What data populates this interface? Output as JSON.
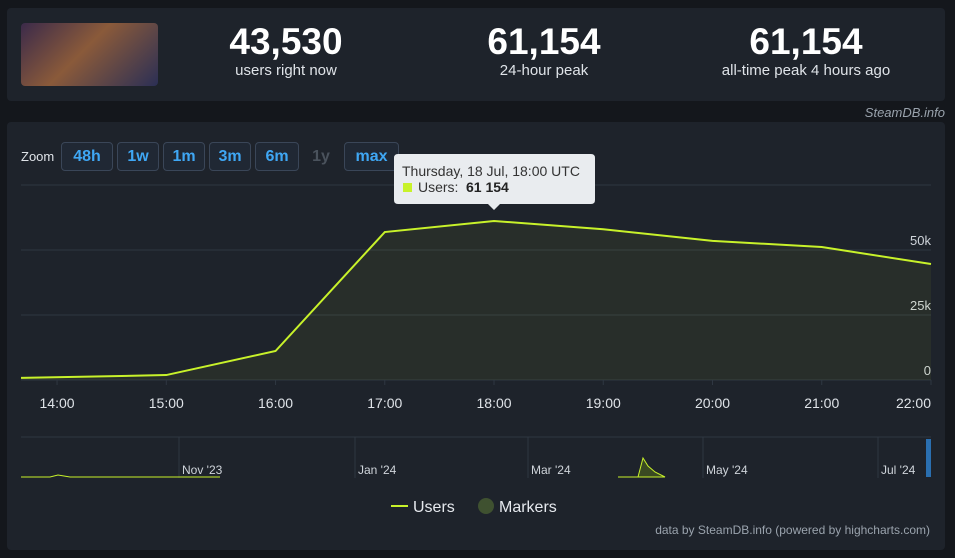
{
  "stats": [
    {
      "value": "43,530",
      "label": "users right now"
    },
    {
      "value": "61,154",
      "label": "24-hour peak"
    },
    {
      "value": "61,154",
      "label": "all-time peak 4 hours ago"
    }
  ],
  "brand": "SteamDB.info",
  "zoom": {
    "label": "Zoom",
    "buttons": [
      "48h",
      "1w",
      "1m",
      "3m",
      "6m",
      "1y",
      "max"
    ]
  },
  "tooltip": {
    "title": "Thursday, 18 Jul, 18:00 UTC",
    "series": "Users:",
    "value": "61 154"
  },
  "navigator": {
    "labels": [
      "Nov '23",
      "Jan '24",
      "Mar '24",
      "May '24",
      "Jul '24"
    ]
  },
  "legend": [
    "Users",
    "Markers"
  ],
  "credits": "data by SteamDB.info (powered by highcharts.com)",
  "chart_data": {
    "type": "line",
    "x": [
      13.67,
      15,
      16,
      17,
      18,
      19,
      20,
      21,
      22
    ],
    "series": [
      {
        "name": "Users",
        "color": "#c8f22a",
        "values": [
          800,
          1900,
          11150,
          56900,
          61154,
          58000,
          53500,
          51150,
          44600
        ]
      }
    ],
    "xlim": [
      13.67,
      22
    ],
    "xticks": [
      {
        "value": 14,
        "label": "14:00"
      },
      {
        "value": 15,
        "label": "15:00"
      },
      {
        "value": 16,
        "label": "16:00"
      },
      {
        "value": 17,
        "label": "17:00"
      },
      {
        "value": 18,
        "label": "18:00"
      },
      {
        "value": 19,
        "label": "19:00"
      },
      {
        "value": 20,
        "label": "20:00"
      },
      {
        "value": 21,
        "label": "21:00"
      },
      {
        "value": 22,
        "label": "22:00"
      }
    ],
    "ylim": [
      0,
      75000
    ],
    "yticks": [
      0,
      {
        "value": 25000,
        "label": "25k"
      },
      {
        "value": 50000,
        "label": "50k"
      }
    ],
    "grid": true
  }
}
